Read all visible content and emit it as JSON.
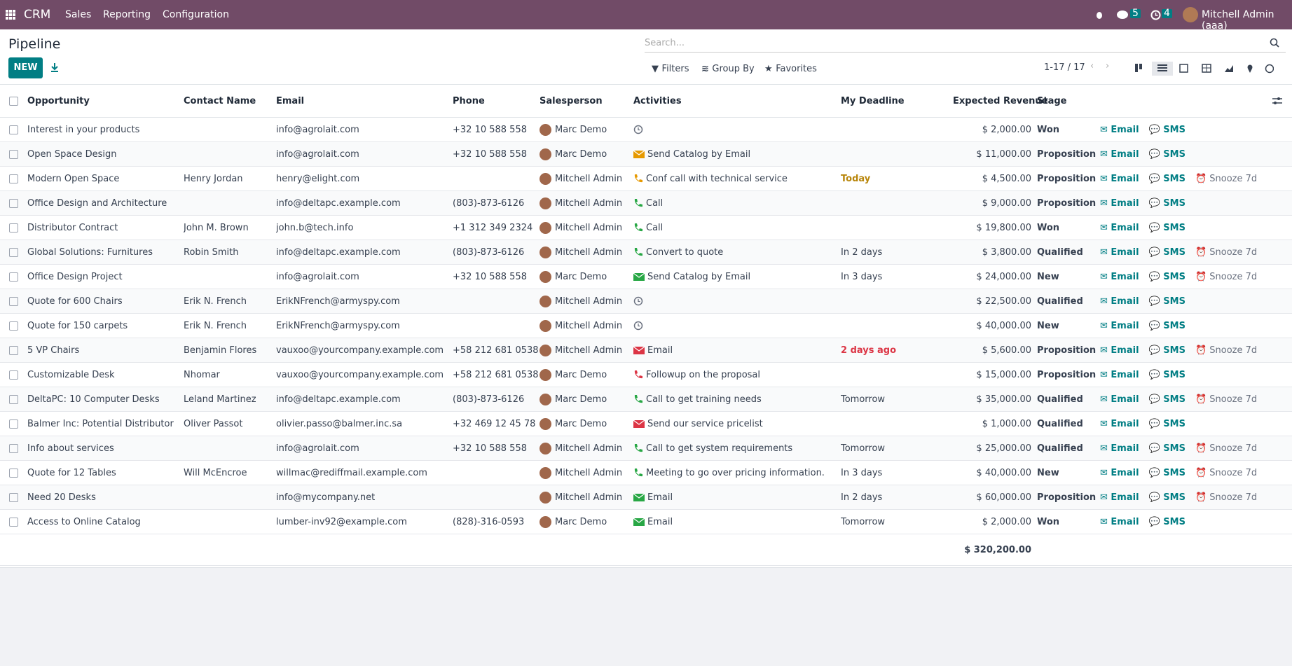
{
  "navbar": {
    "app": "CRM",
    "menus": [
      "Sales",
      "Reporting",
      "Configuration"
    ],
    "messages_count": 5,
    "activities_count": 4,
    "user": "Mitchell Admin (aaa)"
  },
  "control_panel": {
    "title": "Pipeline",
    "new_button": "NEW",
    "search_placeholder": "Search...",
    "filters": [
      "Filters",
      "Group By",
      "Favorites"
    ],
    "pager": "1-17 / 17"
  },
  "table": {
    "headers": [
      "Opportunity",
      "Contact Name",
      "Email",
      "Phone",
      "Salesperson",
      "Activities",
      "My Deadline",
      "Expected Revenue",
      "Stage"
    ],
    "rows": [
      {
        "opportunity": "Interest in your products",
        "contact": null,
        "email": "info@agrolait.com",
        "phone": "+32 10 588 558",
        "salesperson": "Marc Demo",
        "activity_icon": "clock",
        "activity_state": "none",
        "activity": null,
        "deadline": null,
        "revenue": "$ 2,000.00",
        "stage": "Won",
        "actions": [
          "Email",
          "SMS"
        ]
      },
      {
        "opportunity": "Open Space Design",
        "contact": null,
        "email": "info@agrolait.com",
        "phone": "+32 10 588 558",
        "salesperson": "Marc Demo",
        "activity_icon": "mail",
        "activity_state": "today",
        "activity": "Send Catalog by Email",
        "deadline": null,
        "revenue": "$ 11,000.00",
        "stage": "Proposition",
        "actions": [
          "Email",
          "SMS"
        ]
      },
      {
        "opportunity": "Modern Open Space",
        "contact": "Henry Jordan",
        "email": "henry@elight.com",
        "phone": null,
        "salesperson": "Mitchell Admin",
        "activity_icon": "phone",
        "activity_state": "today",
        "activity": "Conf call with technical service",
        "deadline": "Today",
        "revenue": "$ 4,500.00",
        "stage": "Proposition",
        "actions": [
          "Email",
          "SMS",
          "Snooze 7d"
        ]
      },
      {
        "opportunity": "Office Design and Architecture",
        "contact": null,
        "email": "info@deltapc.example.com",
        "phone": "(803)-873-6126",
        "salesperson": "Mitchell Admin",
        "activity_icon": "phone",
        "activity_state": "planned",
        "activity": "Call",
        "deadline": null,
        "revenue": "$ 9,000.00",
        "stage": "Proposition",
        "actions": [
          "Email",
          "SMS"
        ]
      },
      {
        "opportunity": "Distributor Contract",
        "contact": "John M. Brown",
        "email": "john.b@tech.info",
        "phone": "+1 312 349 2324",
        "salesperson": "Mitchell Admin",
        "activity_icon": "phone",
        "activity_state": "planned",
        "activity": "Call",
        "deadline": null,
        "revenue": "$ 19,800.00",
        "stage": "Won",
        "actions": [
          "Email",
          "SMS"
        ]
      },
      {
        "opportunity": "Global Solutions: Furnitures",
        "contact": "Robin Smith",
        "email": "info@deltapc.example.com",
        "phone": "(803)-873-6126",
        "salesperson": "Mitchell Admin",
        "activity_icon": "phone",
        "activity_state": "planned",
        "activity": "Convert to quote",
        "deadline": "In 2 days",
        "revenue": "$ 3,800.00",
        "stage": "Qualified",
        "actions": [
          "Email",
          "SMS",
          "Snooze 7d"
        ]
      },
      {
        "opportunity": "Office Design Project",
        "contact": null,
        "email": "info@agrolait.com",
        "phone": "+32 10 588 558",
        "salesperson": "Marc Demo",
        "activity_icon": "mail",
        "activity_state": "planned",
        "activity": "Send Catalog by Email",
        "deadline": "In 3 days",
        "revenue": "$ 24,000.00",
        "stage": "New",
        "actions": [
          "Email",
          "SMS",
          "Snooze 7d"
        ]
      },
      {
        "opportunity": "Quote for 600 Chairs",
        "contact": "Erik N. French",
        "email": "ErikNFrench@armyspy.com",
        "phone": null,
        "salesperson": "Mitchell Admin",
        "activity_icon": "clock",
        "activity_state": "none",
        "activity": null,
        "deadline": null,
        "revenue": "$ 22,500.00",
        "stage": "Qualified",
        "actions": [
          "Email",
          "SMS"
        ]
      },
      {
        "opportunity": "Quote for 150 carpets",
        "contact": "Erik N. French",
        "email": "ErikNFrench@armyspy.com",
        "phone": null,
        "salesperson": "Mitchell Admin",
        "activity_icon": "clock",
        "activity_state": "none",
        "activity": null,
        "deadline": null,
        "revenue": "$ 40,000.00",
        "stage": "New",
        "actions": [
          "Email",
          "SMS"
        ]
      },
      {
        "opportunity": "5 VP Chairs",
        "contact": "Benjamin Flores",
        "email": "vauxoo@yourcompany.example.com",
        "phone": "+58 212 681 0538",
        "salesperson": "Mitchell Admin",
        "activity_icon": "mail",
        "activity_state": "overdue",
        "activity": "Email",
        "deadline": "2 days ago",
        "revenue": "$ 5,600.00",
        "stage": "Proposition",
        "actions": [
          "Email",
          "SMS",
          "Snooze 7d"
        ]
      },
      {
        "opportunity": "Customizable Desk",
        "contact": "Nhomar",
        "email": "vauxoo@yourcompany.example.com",
        "phone": "+58 212 681 0538",
        "salesperson": "Marc Demo",
        "activity_icon": "phone",
        "activity_state": "overdue",
        "activity": "Followup on the proposal",
        "deadline": null,
        "revenue": "$ 15,000.00",
        "stage": "Proposition",
        "actions": [
          "Email",
          "SMS"
        ]
      },
      {
        "opportunity": "DeltaPC: 10 Computer Desks",
        "contact": "Leland Martinez",
        "email": "info@deltapc.example.com",
        "phone": "(803)-873-6126",
        "salesperson": "Marc Demo",
        "activity_icon": "phone",
        "activity_state": "planned",
        "activity": "Call to get training needs",
        "deadline": "Tomorrow",
        "revenue": "$ 35,000.00",
        "stage": "Qualified",
        "actions": [
          "Email",
          "SMS",
          "Snooze 7d"
        ]
      },
      {
        "opportunity": "Balmer Inc: Potential Distributor",
        "contact": "Oliver Passot",
        "email": "olivier.passo@balmer.inc.sa",
        "phone": "+32 469 12 45 78",
        "salesperson": "Marc Demo",
        "activity_icon": "mail",
        "activity_state": "overdue",
        "activity": "Send our service pricelist",
        "deadline": null,
        "revenue": "$ 1,000.00",
        "stage": "Qualified",
        "actions": [
          "Email",
          "SMS"
        ]
      },
      {
        "opportunity": "Info about services",
        "contact": null,
        "email": "info@agrolait.com",
        "phone": "+32 10 588 558",
        "salesperson": "Mitchell Admin",
        "activity_icon": "phone",
        "activity_state": "planned",
        "activity": "Call to get system requirements",
        "deadline": "Tomorrow",
        "revenue": "$ 25,000.00",
        "stage": "Qualified",
        "actions": [
          "Email",
          "SMS",
          "Snooze 7d"
        ]
      },
      {
        "opportunity": "Quote for 12 Tables",
        "contact": "Will McEncroe",
        "email": "willmac@rediffmail.example.com",
        "phone": null,
        "salesperson": "Mitchell Admin",
        "activity_icon": "phone",
        "activity_state": "planned",
        "activity": "Meeting to go over pricing information.",
        "deadline": "In 3 days",
        "revenue": "$ 40,000.00",
        "stage": "New",
        "actions": [
          "Email",
          "SMS",
          "Snooze 7d"
        ]
      },
      {
        "opportunity": "Need 20 Desks",
        "contact": null,
        "email": "info@mycompany.net",
        "phone": null,
        "salesperson": "Mitchell Admin",
        "activity_icon": "mail",
        "activity_state": "planned",
        "activity": "Email",
        "deadline": "In 2 days",
        "revenue": "$ 60,000.00",
        "stage": "Proposition",
        "actions": [
          "Email",
          "SMS",
          "Snooze 7d"
        ]
      },
      {
        "opportunity": "Access to Online Catalog",
        "contact": null,
        "email": "lumber-inv92@example.com",
        "phone": "(828)-316-0593",
        "salesperson": "Marc Demo",
        "activity_icon": "mail",
        "activity_state": "planned",
        "activity": "Email",
        "deadline": "Tomorrow",
        "revenue": "$ 2,000.00",
        "stage": "Won",
        "actions": [
          "Email",
          "SMS"
        ]
      }
    ],
    "total": "$ 320,200.00"
  }
}
